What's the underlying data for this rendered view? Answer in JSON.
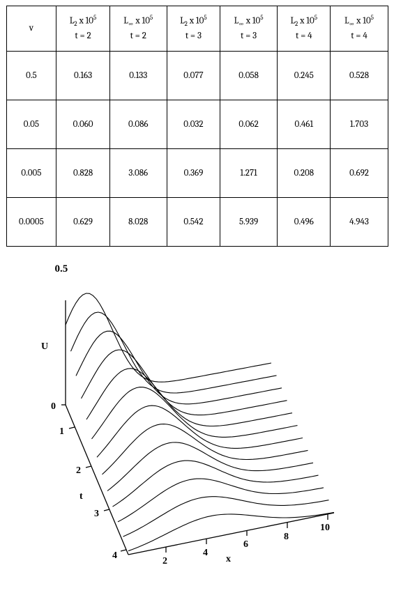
{
  "table": {
    "columns": [
      {
        "lines": [
          "v"
        ]
      },
      {
        "lines": [
          "L<sub>2</sub> x 10<sup>5</sup>",
          "t = 2"
        ]
      },
      {
        "lines": [
          "L<sub>&infin;</sub> x 10<sup>5</sup>",
          "t = 2"
        ]
      },
      {
        "lines": [
          "L<sub>2</sub> x 10<sup>5</sup>",
          "t = 3"
        ]
      },
      {
        "lines": [
          "L<sub>&infin;</sub> x 10<sup>5</sup>",
          "t = 3"
        ]
      },
      {
        "lines": [
          "L<sub>2</sub> x 10<sup>5</sup>",
          "t = 4"
        ]
      },
      {
        "lines": [
          "L<sub>&infin;</sub> x 10<sup>5</sup>",
          "t = 4"
        ]
      }
    ],
    "rows": [
      [
        "0.5",
        "0.163",
        "0.133",
        "0.077",
        "0.058",
        "0.245",
        "0.528"
      ],
      [
        "0.05",
        "0.060",
        "0.086",
        "0.032",
        "0.062",
        "0.461",
        "1.703"
      ],
      [
        "0.005",
        "0.828",
        "3.086",
        "0.369",
        "1.271",
        "0.208",
        "0.692"
      ],
      [
        "0.0005",
        "0.629",
        "8.028",
        "0.542",
        "5.939",
        "0.496",
        "4.943"
      ]
    ],
    "border_color": "#000000",
    "background_color": "#ffffff",
    "cell_fontsize": 13
  },
  "figure": {
    "type": "3d-line",
    "top_label": "0.5",
    "axes": {
      "U": {
        "label": "U",
        "ticks": [
          "0"
        ],
        "range": [
          0,
          0.5
        ]
      },
      "t": {
        "label": "t",
        "ticks": [
          "1",
          "2",
          "3",
          "4"
        ],
        "range": [
          1,
          4
        ]
      },
      "x": {
        "label": "x",
        "ticks": [
          "2",
          "4",
          "6",
          "8",
          "10"
        ],
        "range": [
          0,
          10
        ]
      }
    },
    "curve_count": 13,
    "curve_style": {
      "stroke": "#000000",
      "stroke_width": 1.1,
      "fill": "none"
    },
    "frame_style": {
      "stroke": "#000000",
      "stroke_width": 1.3
    },
    "label_fontsize": 14,
    "label_fontweight": "bold",
    "background_color": "#ffffff"
  }
}
